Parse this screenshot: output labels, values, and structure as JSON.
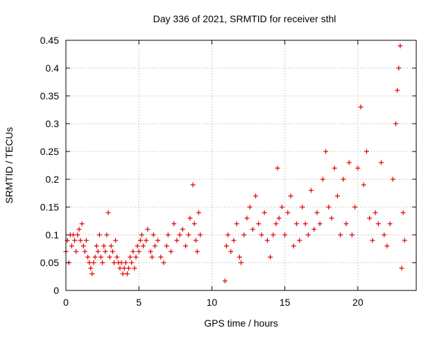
{
  "chart_data": {
    "type": "scatter",
    "title": "Day 336 of 2021, SRMTID for receiver sthl",
    "xlabel": "GPS time / hours",
    "ylabel": "SRMTID / TECUs",
    "xlim": [
      0,
      24
    ],
    "ylim": [
      0,
      0.45
    ],
    "xticks": [
      0,
      5,
      10,
      15,
      20
    ],
    "xtick_labels": [
      "0",
      "5",
      "10",
      "15",
      "20"
    ],
    "yticks": [
      0,
      0.05,
      0.1,
      0.15,
      0.2,
      0.25,
      0.3,
      0.35,
      0.4,
      0.45
    ],
    "ytick_labels": [
      "0",
      "0.05",
      "0.1",
      "0.15",
      "0.2",
      "0.25",
      "0.3",
      "0.35",
      "0.4",
      "0.45"
    ],
    "grid": true,
    "marker": "plus",
    "color": "#e00000",
    "series": [
      {
        "name": "SRMTID",
        "points": [
          [
            0.0,
            0.07
          ],
          [
            0.1,
            0.09
          ],
          [
            0.2,
            0.05
          ],
          [
            0.3,
            0.1
          ],
          [
            0.4,
            0.08
          ],
          [
            0.5,
            0.1
          ],
          [
            0.6,
            0.09
          ],
          [
            0.7,
            0.07
          ],
          [
            0.8,
            0.1
          ],
          [
            0.9,
            0.11
          ],
          [
            1.0,
            0.09
          ],
          [
            1.1,
            0.12
          ],
          [
            1.2,
            0.08
          ],
          [
            1.3,
            0.07
          ],
          [
            1.4,
            0.09
          ],
          [
            1.5,
            0.06
          ],
          [
            1.6,
            0.05
          ],
          [
            1.7,
            0.04
          ],
          [
            1.8,
            0.03
          ],
          [
            1.9,
            0.05
          ],
          [
            2.0,
            0.06
          ],
          [
            2.1,
            0.08
          ],
          [
            2.2,
            0.07
          ],
          [
            2.3,
            0.1
          ],
          [
            2.4,
            0.06
          ],
          [
            2.5,
            0.05
          ],
          [
            2.6,
            0.08
          ],
          [
            2.7,
            0.07
          ],
          [
            2.8,
            0.1
          ],
          [
            2.9,
            0.14
          ],
          [
            3.0,
            0.06
          ],
          [
            3.1,
            0.08
          ],
          [
            3.2,
            0.07
          ],
          [
            3.3,
            0.05
          ],
          [
            3.4,
            0.09
          ],
          [
            3.5,
            0.06
          ],
          [
            3.6,
            0.05
          ],
          [
            3.7,
            0.04
          ],
          [
            3.8,
            0.05
          ],
          [
            3.9,
            0.03
          ],
          [
            4.0,
            0.04
          ],
          [
            4.1,
            0.05
          ],
          [
            4.2,
            0.03
          ],
          [
            4.3,
            0.04
          ],
          [
            4.4,
            0.06
          ],
          [
            4.5,
            0.05
          ],
          [
            4.6,
            0.07
          ],
          [
            4.7,
            0.04
          ],
          [
            4.8,
            0.06
          ],
          [
            4.9,
            0.08
          ],
          [
            5.0,
            0.07
          ],
          [
            5.1,
            0.09
          ],
          [
            5.2,
            0.1
          ],
          [
            5.3,
            0.08
          ],
          [
            5.5,
            0.09
          ],
          [
            5.6,
            0.11
          ],
          [
            5.8,
            0.07
          ],
          [
            5.9,
            0.06
          ],
          [
            6.0,
            0.1
          ],
          [
            6.1,
            0.08
          ],
          [
            6.3,
            0.09
          ],
          [
            6.5,
            0.06
          ],
          [
            6.7,
            0.05
          ],
          [
            6.9,
            0.08
          ],
          [
            7.0,
            0.1
          ],
          [
            7.2,
            0.07
          ],
          [
            7.4,
            0.12
          ],
          [
            7.6,
            0.09
          ],
          [
            7.8,
            0.1
          ],
          [
            8.0,
            0.11
          ],
          [
            8.2,
            0.08
          ],
          [
            8.4,
            0.1
          ],
          [
            8.5,
            0.13
          ],
          [
            8.7,
            0.19
          ],
          [
            8.8,
            0.12
          ],
          [
            8.9,
            0.09
          ],
          [
            9.0,
            0.07
          ],
          [
            9.1,
            0.14
          ],
          [
            9.2,
            0.1
          ],
          [
            10.9,
            0.017
          ],
          [
            11.0,
            0.08
          ],
          [
            11.1,
            0.1
          ],
          [
            11.3,
            0.07
          ],
          [
            11.5,
            0.09
          ],
          [
            11.7,
            0.12
          ],
          [
            11.9,
            0.06
          ],
          [
            12.0,
            0.05
          ],
          [
            12.2,
            0.1
          ],
          [
            12.4,
            0.13
          ],
          [
            12.6,
            0.15
          ],
          [
            12.8,
            0.11
          ],
          [
            13.0,
            0.17
          ],
          [
            13.2,
            0.12
          ],
          [
            13.4,
            0.1
          ],
          [
            13.6,
            0.14
          ],
          [
            13.8,
            0.09
          ],
          [
            14.0,
            0.06
          ],
          [
            14.2,
            0.1
          ],
          [
            14.4,
            0.12
          ],
          [
            14.5,
            0.22
          ],
          [
            14.6,
            0.13
          ],
          [
            14.8,
            0.15
          ],
          [
            15.0,
            0.1
          ],
          [
            15.2,
            0.14
          ],
          [
            15.4,
            0.17
          ],
          [
            15.6,
            0.08
          ],
          [
            15.8,
            0.12
          ],
          [
            16.0,
            0.09
          ],
          [
            16.2,
            0.15
          ],
          [
            16.4,
            0.12
          ],
          [
            16.6,
            0.1
          ],
          [
            16.8,
            0.18
          ],
          [
            17.0,
            0.11
          ],
          [
            17.2,
            0.14
          ],
          [
            17.4,
            0.12
          ],
          [
            17.6,
            0.2
          ],
          [
            17.8,
            0.25
          ],
          [
            18.0,
            0.15
          ],
          [
            18.2,
            0.13
          ],
          [
            18.4,
            0.22
          ],
          [
            18.6,
            0.17
          ],
          [
            18.8,
            0.1
          ],
          [
            19.0,
            0.2
          ],
          [
            19.2,
            0.12
          ],
          [
            19.4,
            0.23
          ],
          [
            19.6,
            0.1
          ],
          [
            19.8,
            0.15
          ],
          [
            20.0,
            0.22
          ],
          [
            20.2,
            0.33
          ],
          [
            20.4,
            0.19
          ],
          [
            20.6,
            0.25
          ],
          [
            20.8,
            0.13
          ],
          [
            21.0,
            0.09
          ],
          [
            21.2,
            0.14
          ],
          [
            21.4,
            0.12
          ],
          [
            21.6,
            0.23
          ],
          [
            21.8,
            0.1
          ],
          [
            22.0,
            0.08
          ],
          [
            22.2,
            0.12
          ],
          [
            22.4,
            0.2
          ],
          [
            22.6,
            0.3
          ],
          [
            22.7,
            0.36
          ],
          [
            22.8,
            0.4
          ],
          [
            22.9,
            0.44
          ],
          [
            23.0,
            0.04
          ],
          [
            23.1,
            0.14
          ],
          [
            23.2,
            0.09
          ]
        ]
      }
    ]
  }
}
